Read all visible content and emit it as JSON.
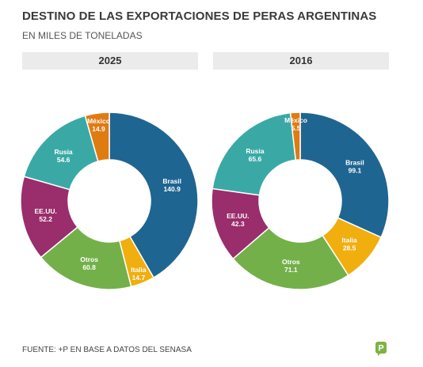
{
  "header": {
    "title": "DESTINO DE LAS EXPORTACIONES DE PERAS ARGENTINAS",
    "subtitle": "EN MILES DE TONELADAS"
  },
  "footer": {
    "source": "FUENTE: +P EN BASE A DATOS DEL SENASA",
    "logo_icon": "brand-p-logo-icon"
  },
  "chart_data": [
    {
      "type": "pie",
      "donut": true,
      "title": "2025",
      "slices": [
        {
          "label": "Brasil",
          "value": 140.9,
          "value_text": "140.9",
          "color": "#1f6591"
        },
        {
          "label": "Italia",
          "value": 14.7,
          "value_text": "14.7",
          "color": "#f0ae0f"
        },
        {
          "label": "Otros",
          "value": 60.8,
          "value_text": "60.8",
          "color": "#74b04a"
        },
        {
          "label": "EE.UU.",
          "value": 52.2,
          "value_text": "52.2",
          "color": "#9a2d6c"
        },
        {
          "label": "Rusia",
          "value": 54.6,
          "value_text": "54.6",
          "color": "#3aa9a6"
        },
        {
          "label": "México",
          "value": 14.9,
          "value_text": "14.9",
          "color": "#e07b12"
        }
      ]
    },
    {
      "type": "pie",
      "donut": true,
      "title": "2016",
      "slices": [
        {
          "label": "Brasil",
          "value": 99.1,
          "value_text": "99.1",
          "color": "#1f6591"
        },
        {
          "label": "Italia",
          "value": 28.5,
          "value_text": "28.5",
          "color": "#f0ae0f"
        },
        {
          "label": "Otros",
          "value": 71.1,
          "value_text": "71.1",
          "color": "#74b04a"
        },
        {
          "label": "EE.UU.",
          "value": 42.3,
          "value_text": "42.3",
          "color": "#9a2d6c"
        },
        {
          "label": "Rusia",
          "value": 65.6,
          "value_text": "65.6",
          "color": "#3aa9a6"
        },
        {
          "label": "México",
          "value": 5.5,
          "value_text": "5.5",
          "color": "#e07b12"
        }
      ]
    }
  ]
}
